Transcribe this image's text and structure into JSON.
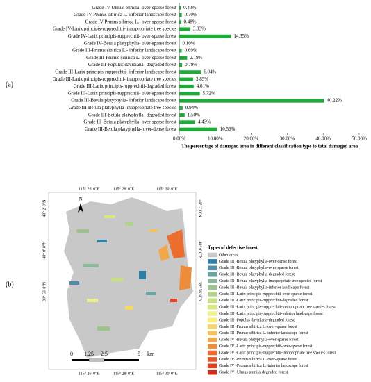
{
  "chart_data": {
    "type": "bar",
    "orientation": "horizontal",
    "xlabel": "The percentage of damaged area in different classification type to total damaged area",
    "categories": [
      "Grade IV-Ulmus pumila- over-sparse forest",
      "Grade IV-Prunus sibirica L.-inferior landscape forest",
      "Grade IV-Prunus sibirica L.- over-sparse forest",
      "Grade IV-Larix principis-rupprechtii- inappropriate tree species",
      "Grade IV-Larix principis-rupprechtii- over-sparse forest",
      "Grade IV-Betula platyphylla- over-sparse forest",
      "Grade III-Prunus sibirica L.- inferior landscape forest",
      "Grade III-Prunus sibirica L.-over-sparse forest",
      "Grade III-Populus davidiana- degraded forest",
      "Grade III-Larix principis-rupprechtii- inferior landscape forest",
      "Grade III-Larix principis-rupprechtii- inappropriate tree species",
      "Grade III-Larix principis-rupprechtii-degraded forest",
      "Grade III-Larix principis-rupprechtii- over-sparse forest",
      "Grade III-Betula platyphylla- inferior landscape forest",
      "Grade III-Betula platyphylla- inappropriate tree species",
      "Grade III-Betula platyphylla- degraded forest",
      "Grade III-Betula platyphylla- over-sparse forest",
      "Grade III-Betula platyphylla- over-dense forest"
    ],
    "values": [
      0.4,
      0.7,
      0.48,
      3.03,
      14.35,
      0.1,
      0.69,
      2.19,
      0.79,
      6.04,
      3.85,
      4.01,
      5.72,
      40.22,
      0.94,
      1.5,
      4.43,
      10.56
    ],
    "value_labels": [
      "0.40%",
      "0.70%",
      "0.48%",
      "3.03%",
      "14.35%",
      "0.10%",
      "0.69%",
      "2.19%",
      "0.79%",
      "6.04%",
      "3.85%",
      "4.01%",
      "5.72%",
      "40.22%",
      "0.94%",
      "1.50%",
      "4.43%",
      "10.56%"
    ],
    "color": "#1faa3a",
    "xlim": [
      0,
      50
    ],
    "xticks": [
      {
        "value": 0,
        "label": "0.00%"
      },
      {
        "value": 10,
        "label": "10.00%"
      },
      {
        "value": 20,
        "label": "20.00%"
      },
      {
        "value": 30,
        "label": "30.00%"
      },
      {
        "value": 40,
        "label": "40.00%"
      },
      {
        "value": 50,
        "label": "50.00%"
      }
    ]
  },
  "panel_labels": [
    "(a)",
    "(b)"
  ],
  "map": {
    "top_lon_labels": [
      "115° 26' 0\"E",
      "115° 28' 0\"E",
      "115° 30' 0\"E"
    ],
    "bottom_lon_labels": [
      "115° 26' 0\"E",
      "115° 28' 0\"E",
      "115° 30' 0\"E"
    ],
    "left_lat_labels": [
      "40° 2' 0\"N",
      "40° 0' 0\"N",
      "39° 58' 0\"N"
    ],
    "right_lat_labels": [
      "40° 2' 0\"N",
      "40° 0' 0\"N",
      "39° 58' 0\"N"
    ],
    "north": "N",
    "scale_labels": [
      "0",
      "1.25",
      "2.5",
      "5",
      "km"
    ],
    "legend_title": "Types of defective forest",
    "legend": [
      {
        "label": "Other areas",
        "color": "#c8c8c8"
      },
      {
        "label": "Grade III -Betula platyphylla-over-dense forest",
        "color": "#2e7fa8"
      },
      {
        "label": "Grade III -Betula platyphylla-over-sparse forest",
        "color": "#4f8fae"
      },
      {
        "label": "Grade III -Betula platyphylla-degraded forest",
        "color": "#6ba3a5"
      },
      {
        "label": "Grade III -Betula platyphylla-inappropriate tree species forest",
        "color": "#8cb89a"
      },
      {
        "label": "Grade III -Betula platyphylla-inferior landscape forest",
        "color": "#9dc48c"
      },
      {
        "label": "Grade III -Larix principis-rupprechtii-over-sparse forest",
        "color": "#b4d38a"
      },
      {
        "label": "Grade III -Larix principis-rupprechtii-degraded forest",
        "color": "#c8df80"
      },
      {
        "label": "Grade III -Larix principis-rupprechtii-inappropriate tree species forest",
        "color": "#dbe97a"
      },
      {
        "label": "Grade III -Larix principis-rupprechtii-inferior landscape forest",
        "color": "#eef28a"
      },
      {
        "label": "Grade III -Populus davidiana-degraded forest",
        "color": "#f7ee80"
      },
      {
        "label": "Grade III -Prunus sibirica L.-over-sparse forest",
        "color": "#f5d86a"
      },
      {
        "label": "Grade III -Prunus sibirica L.-inferior landscape forest",
        "color": "#f4c25a"
      },
      {
        "label": "Grade IV -Betula platyphylla-over-sparse forest",
        "color": "#f2a84a"
      },
      {
        "label": "Grade IV -Larix principis-rupprechtii-over-sparse forest",
        "color": "#ef8c3a"
      },
      {
        "label": "Grade IV -Larix principis-rupprechtii-inappropriate tree species forest",
        "color": "#ec6e2e"
      },
      {
        "label": "Grade IV -Prunus sibirica L.-over-sparse forest",
        "color": "#e85526"
      },
      {
        "label": "Grade IV -Prunus sibirica L.-inferior landscape forest",
        "color": "#e3401f"
      },
      {
        "label": "Grade IV -Ulmus pumila-degraded forest",
        "color": "#d42a1a"
      }
    ]
  }
}
